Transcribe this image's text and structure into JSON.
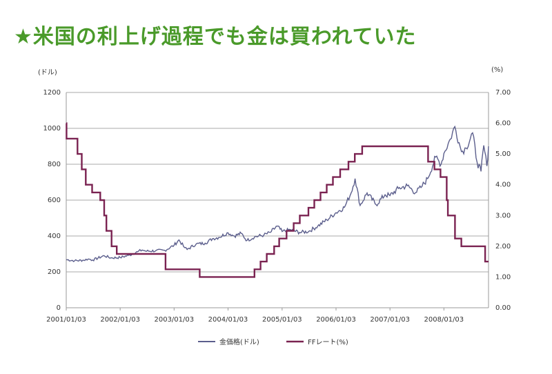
{
  "headline": "★米国の利上げ過程でも金は買われていた",
  "chart_data": {
    "type": "line",
    "title": "",
    "y_left": {
      "unit": "(ドル)",
      "min": 0,
      "max": 1200,
      "ticks": [
        "0",
        "200",
        "400",
        "600",
        "800",
        "1000",
        "1200"
      ],
      "tick_values": [
        0,
        200,
        400,
        600,
        800,
        1000,
        1200
      ]
    },
    "y_right": {
      "unit": "(%)",
      "min": 0,
      "max": 7,
      "ticks": [
        "0.00",
        "1.00",
        "2.00",
        "3.00",
        "4.00",
        "5.00",
        "6.00",
        "7.00"
      ],
      "tick_values": [
        0,
        1,
        2,
        3,
        4,
        5,
        6,
        7
      ]
    },
    "x_ticks": [
      "2001/01/03",
      "2002/01/03",
      "2003/01/03",
      "2004/01/03",
      "2005/01/03",
      "2006/01/03",
      "2007/01/03",
      "2008/01/03"
    ],
    "x_range": [
      "2001/01/03",
      "2008/10/31"
    ],
    "grid": "horizontal",
    "legend_position": "bottom",
    "series": [
      {
        "name": "金価格(ドル)",
        "axis": "left",
        "color": "#5b5e8c",
        "points": [
          [
            "2001/01/03",
            268
          ],
          [
            "2001/03/01",
            262
          ],
          [
            "2001/05/01",
            265
          ],
          [
            "2001/06/01",
            272
          ],
          [
            "2001/07/01",
            266
          ],
          [
            "2001/09/17",
            290
          ],
          [
            "2001/11/01",
            278
          ],
          [
            "2002/01/03",
            280
          ],
          [
            "2002/03/01",
            292
          ],
          [
            "2002/05/01",
            312
          ],
          [
            "2002/06/01",
            322
          ],
          [
            "2002/07/01",
            315
          ],
          [
            "2002/09/01",
            318
          ],
          [
            "2002/11/01",
            320
          ],
          [
            "2003/01/03",
            348
          ],
          [
            "2003/02/05",
            378
          ],
          [
            "2003/03/15",
            335
          ],
          [
            "2003/04/01",
            325
          ],
          [
            "2003/06/01",
            355
          ],
          [
            "2003/08/01",
            360
          ],
          [
            "2003/09/20",
            385
          ],
          [
            "2003/11/01",
            392
          ],
          [
            "2004/01/03",
            418
          ],
          [
            "2004/02/15",
            400
          ],
          [
            "2004/04/01",
            415
          ],
          [
            "2004/05/10",
            375
          ],
          [
            "2004/07/01",
            395
          ],
          [
            "2004/09/01",
            405
          ],
          [
            "2004/10/15",
            420
          ],
          [
            "2004/12/01",
            455
          ],
          [
            "2005/01/03",
            425
          ],
          [
            "2005/03/01",
            435
          ],
          [
            "2005/05/01",
            420
          ],
          [
            "2005/07/01",
            425
          ],
          [
            "2005/09/01",
            455
          ],
          [
            "2005/11/01",
            490
          ],
          [
            "2006/01/03",
            530
          ],
          [
            "2006/03/01",
            560
          ],
          [
            "2006/04/15",
            640
          ],
          [
            "2006/05/12",
            720
          ],
          [
            "2006/06/15",
            570
          ],
          [
            "2006/08/01",
            640
          ],
          [
            "2006/10/01",
            575
          ],
          [
            "2006/12/01",
            630
          ],
          [
            "2007/01/03",
            625
          ],
          [
            "2007/03/01",
            665
          ],
          [
            "2007/05/01",
            680
          ],
          [
            "2007/06/25",
            642
          ],
          [
            "2007/08/01",
            670
          ],
          [
            "2007/09/15",
            720
          ],
          [
            "2007/11/08",
            840
          ],
          [
            "2007/12/15",
            800
          ],
          [
            "2008/01/03",
            860
          ],
          [
            "2008/02/15",
            940
          ],
          [
            "2008/03/17",
            1010
          ],
          [
            "2008/04/15",
            920
          ],
          [
            "2008/05/01",
            870
          ],
          [
            "2008/06/01",
            890
          ],
          [
            "2008/07/15",
            975
          ],
          [
            "2008/08/15",
            810
          ],
          [
            "2008/09/10",
            760
          ],
          [
            "2008/09/29",
            905
          ],
          [
            "2008/10/20",
            790
          ],
          [
            "2008/10/31",
            900
          ]
        ]
      },
      {
        "name": "FFレート(%)",
        "axis": "right",
        "color": "#7a2251",
        "points": [
          [
            "2001/01/03",
            6.0
          ],
          [
            "2001/01/05",
            5.5
          ],
          [
            "2001/03/20",
            5.0
          ],
          [
            "2001/04/18",
            4.5
          ],
          [
            "2001/05/15",
            4.0
          ],
          [
            "2001/06/27",
            3.75
          ],
          [
            "2001/08/21",
            3.5
          ],
          [
            "2001/09/17",
            3.0
          ],
          [
            "2001/10/02",
            2.5
          ],
          [
            "2001/11/06",
            2.0
          ],
          [
            "2001/12/11",
            1.75
          ],
          [
            "2002/11/06",
            1.25
          ],
          [
            "2003/06/25",
            1.0
          ],
          [
            "2004/06/30",
            1.25
          ],
          [
            "2004/08/10",
            1.5
          ],
          [
            "2004/09/21",
            1.75
          ],
          [
            "2004/11/10",
            2.0
          ],
          [
            "2004/12/14",
            2.25
          ],
          [
            "2005/02/02",
            2.5
          ],
          [
            "2005/03/22",
            2.75
          ],
          [
            "2005/05/03",
            3.0
          ],
          [
            "2005/06/30",
            3.25
          ],
          [
            "2005/08/09",
            3.5
          ],
          [
            "2005/09/20",
            3.75
          ],
          [
            "2005/11/01",
            4.0
          ],
          [
            "2005/12/13",
            4.25
          ],
          [
            "2006/01/31",
            4.5
          ],
          [
            "2006/03/28",
            4.75
          ],
          [
            "2006/05/10",
            5.0
          ],
          [
            "2006/06/29",
            5.25
          ],
          [
            "2007/09/18",
            4.75
          ],
          [
            "2007/10/31",
            4.5
          ],
          [
            "2007/12/11",
            4.25
          ],
          [
            "2008/01/22",
            3.5
          ],
          [
            "2008/01/30",
            3.0
          ],
          [
            "2008/03/18",
            2.25
          ],
          [
            "2008/04/30",
            2.0
          ],
          [
            "2008/10/08",
            1.5
          ],
          [
            "2008/10/31",
            1.5
          ]
        ]
      }
    ]
  }
}
